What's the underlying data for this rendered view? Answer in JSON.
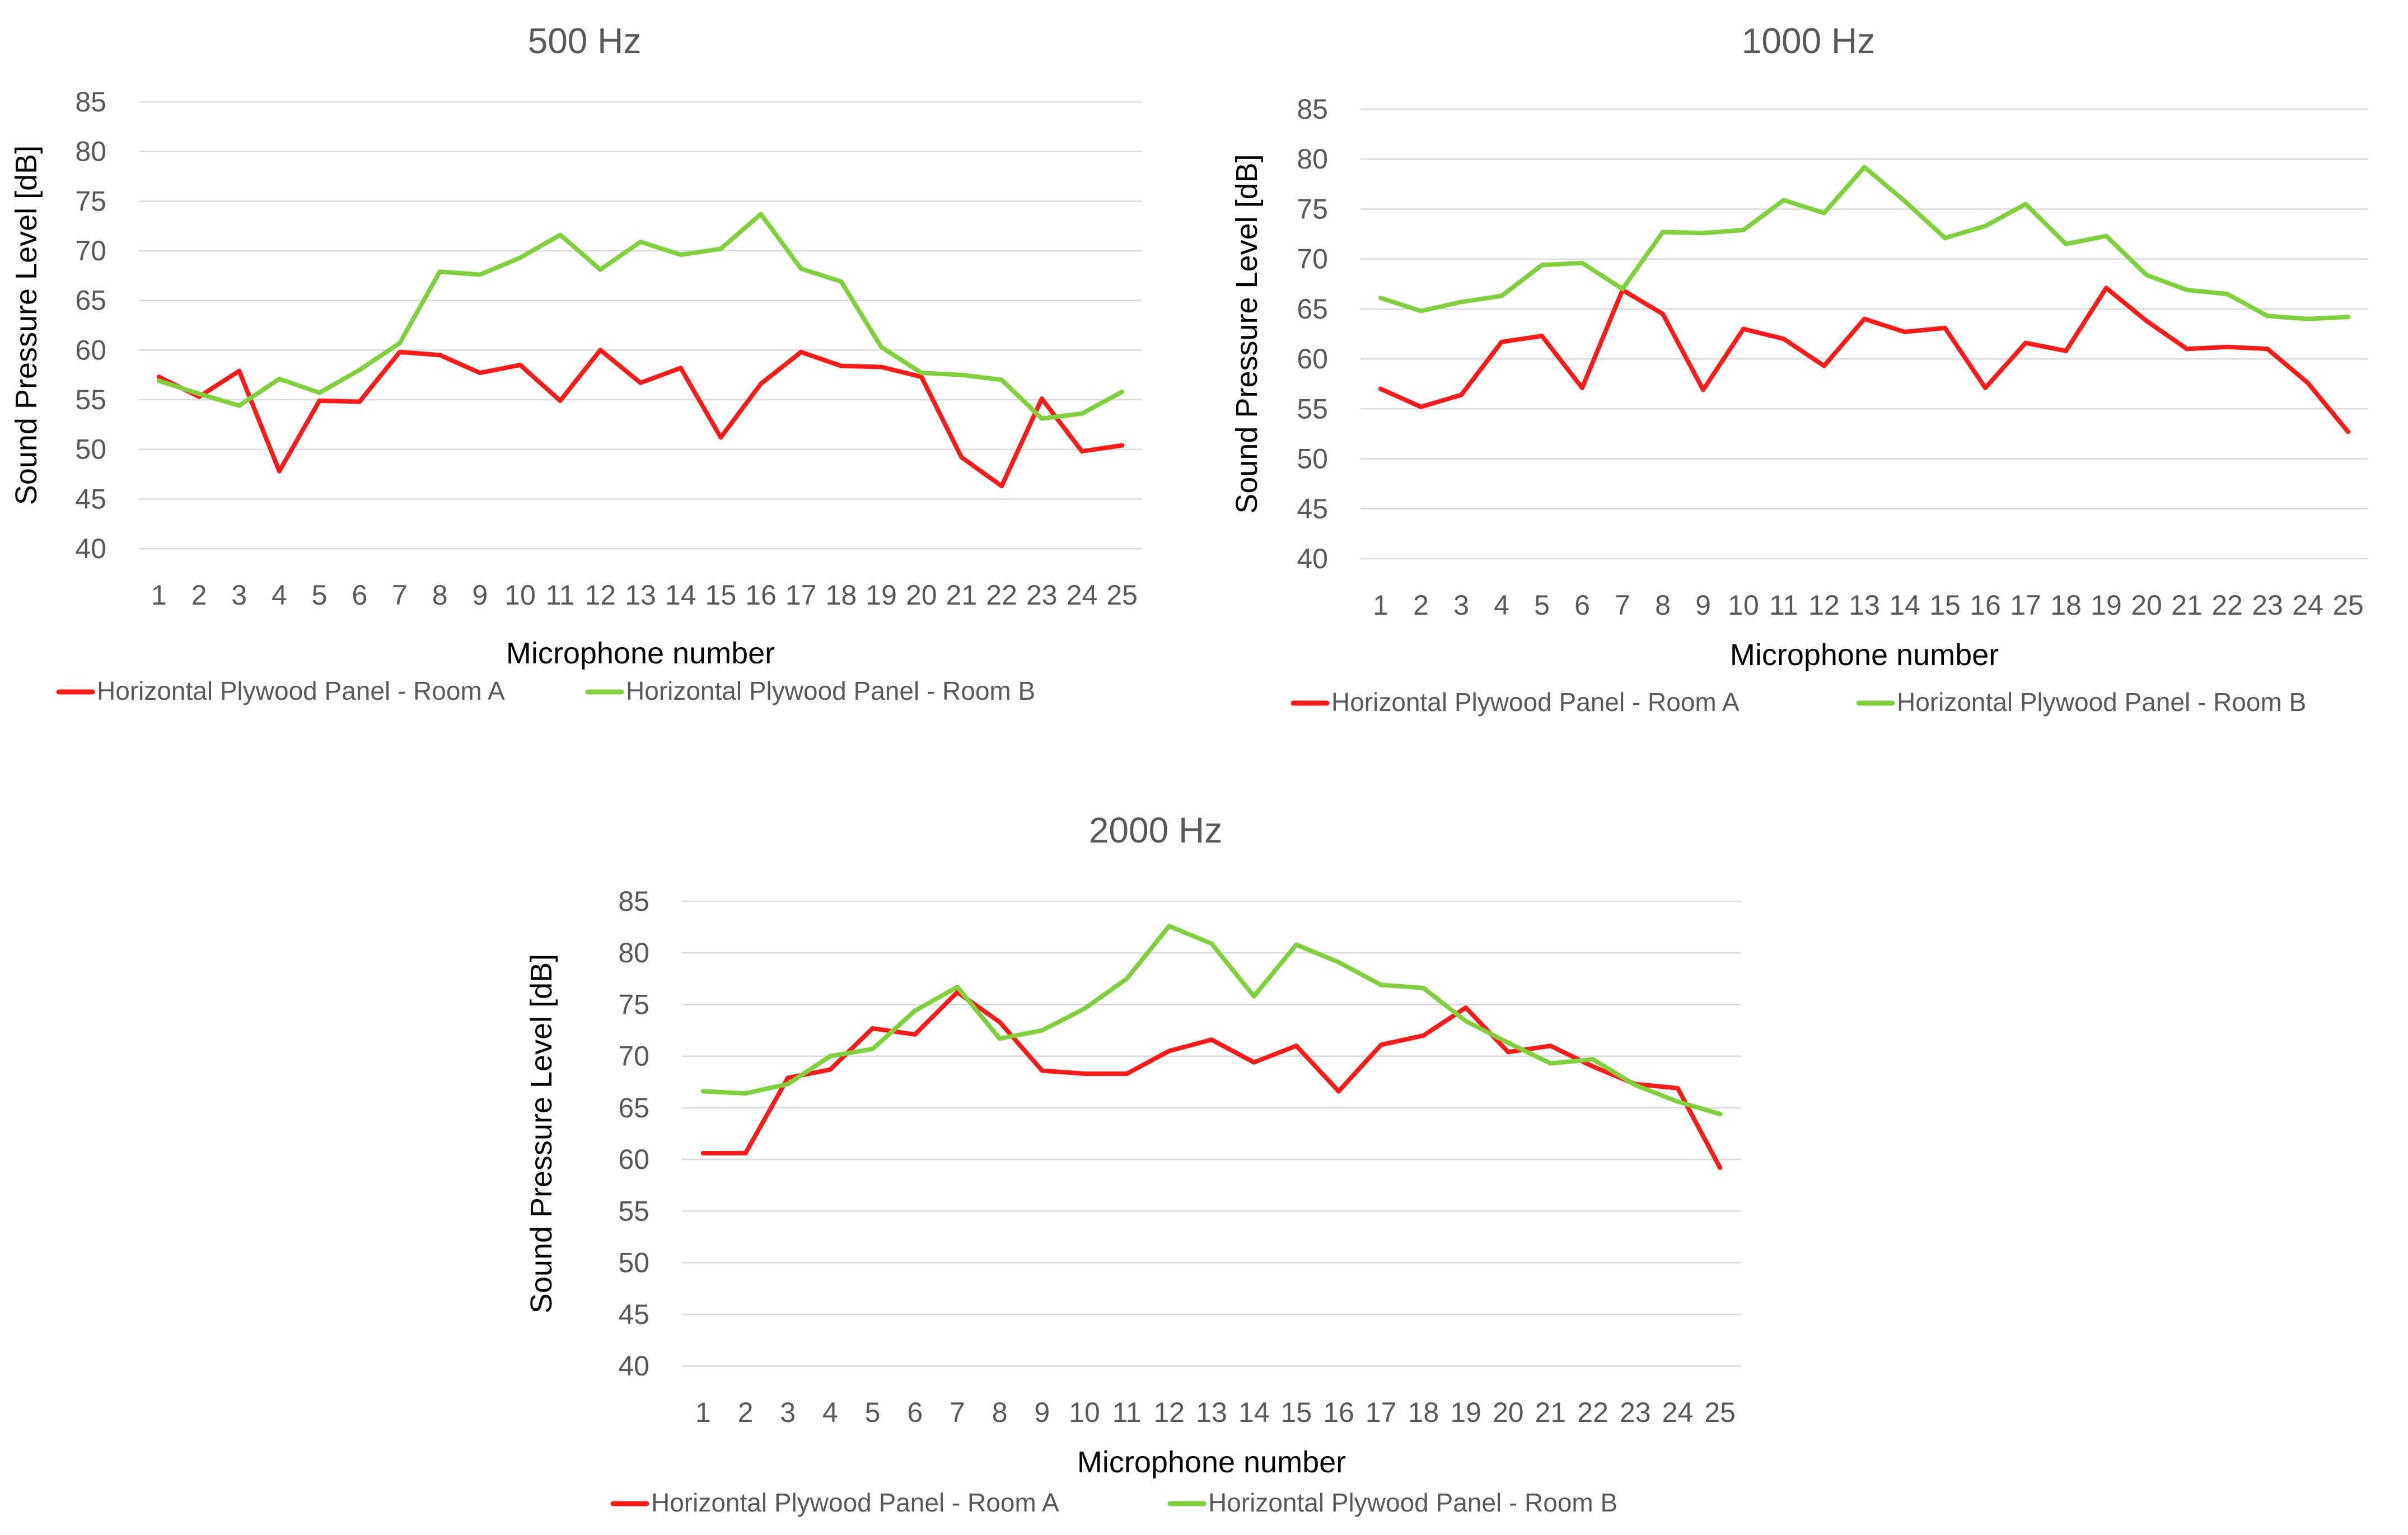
{
  "colors": {
    "room_a": "#ff1a1a",
    "room_b": "#7fd13b"
  },
  "chart_data": [
    {
      "type": "line",
      "title": "500 Hz",
      "xlabel": "Microphone number",
      "ylabel": "Sound Pressure Level [dB]",
      "ylim": [
        40,
        85
      ],
      "yticks": [
        "40",
        "45",
        "50",
        "55",
        "60",
        "65",
        "70",
        "75",
        "80",
        "85"
      ],
      "categories": [
        "1",
        "2",
        "3",
        "4",
        "5",
        "6",
        "7",
        "8",
        "9",
        "10",
        "11",
        "12",
        "13",
        "14",
        "15",
        "16",
        "17",
        "18",
        "19",
        "20",
        "21",
        "22",
        "23",
        "24",
        "25"
      ],
      "legend": "bottom",
      "series": [
        {
          "name": "Horizontal Plywood Panel - Room A",
          "color": "#ff1a1a",
          "values": [
            57.3,
            55.3,
            57.9,
            47.8,
            54.9,
            54.8,
            59.8,
            59.5,
            57.7,
            58.5,
            54.9,
            60.0,
            56.7,
            58.2,
            51.2,
            56.6,
            59.8,
            58.4,
            58.3,
            57.3,
            49.2,
            46.3,
            55.1,
            49.8,
            50.4
          ]
        },
        {
          "name": "Horizontal Plywood Panel - Room B",
          "color": "#7fd13b",
          "values": [
            56.9,
            55.6,
            54.4,
            57.1,
            55.7,
            58.0,
            60.7,
            67.9,
            67.6,
            69.3,
            71.6,
            68.1,
            70.9,
            69.6,
            70.2,
            73.7,
            68.2,
            66.9,
            60.3,
            57.7,
            57.5,
            57.0,
            53.1,
            53.6,
            55.8
          ]
        }
      ]
    },
    {
      "type": "line",
      "title": "1000 Hz",
      "xlabel": "Microphone number",
      "ylabel": "Sound Pressure Level [dB]",
      "ylim": [
        40,
        85
      ],
      "yticks": [
        "40",
        "45",
        "50",
        "55",
        "60",
        "65",
        "70",
        "75",
        "80",
        "85"
      ],
      "categories": [
        "1",
        "2",
        "3",
        "4",
        "5",
        "6",
        "7",
        "8",
        "9",
        "10",
        "11",
        "12",
        "13",
        "14",
        "15",
        "16",
        "17",
        "18",
        "19",
        "20",
        "21",
        "22",
        "23",
        "24",
        "25"
      ],
      "legend": "bottom",
      "series": [
        {
          "name": "Horizontal Plywood Panel - Room A",
          "color": "#ff1a1a",
          "values": [
            57.0,
            55.2,
            56.4,
            61.7,
            62.3,
            57.1,
            66.9,
            64.5,
            56.9,
            63.0,
            62.0,
            59.3,
            64.0,
            62.7,
            63.1,
            57.1,
            61.6,
            60.8,
            67.1,
            63.8,
            61.0,
            61.2,
            61.0,
            57.6,
            52.7
          ]
        },
        {
          "name": "Horizontal Plywood Panel - Room B",
          "color": "#7fd13b",
          "values": [
            66.1,
            64.8,
            65.7,
            66.3,
            69.4,
            69.6,
            67.0,
            72.7,
            72.6,
            72.9,
            75.9,
            74.6,
            79.2,
            75.8,
            72.1,
            73.3,
            75.5,
            71.5,
            72.3,
            68.4,
            66.9,
            66.5,
            64.3,
            64.0,
            64.2
          ]
        }
      ]
    },
    {
      "type": "line",
      "title": "2000 Hz",
      "xlabel": "Microphone number",
      "ylabel": "Sound Pressure Level [dB]",
      "ylim": [
        40,
        85
      ],
      "yticks": [
        "40",
        "45",
        "50",
        "55",
        "60",
        "65",
        "70",
        "75",
        "80",
        "85"
      ],
      "categories": [
        "1",
        "2",
        "3",
        "4",
        "5",
        "6",
        "7",
        "8",
        "9",
        "10",
        "11",
        "12",
        "13",
        "14",
        "15",
        "16",
        "17",
        "18",
        "19",
        "20",
        "21",
        "22",
        "23",
        "24",
        "25"
      ],
      "legend": "bottom",
      "series": [
        {
          "name": "Horizontal Plywood Panel - Room A",
          "color": "#ff1a1a",
          "values": [
            60.6,
            60.6,
            67.9,
            68.7,
            72.7,
            72.1,
            76.2,
            73.3,
            68.6,
            68.3,
            68.3,
            70.5,
            71.6,
            69.4,
            71.0,
            66.6,
            71.1,
            72.0,
            74.7,
            70.4,
            71.0,
            69.0,
            67.3,
            66.9,
            59.2
          ]
        },
        {
          "name": "Horizontal Plywood Panel - Room B",
          "color": "#7fd13b",
          "values": [
            66.6,
            66.4,
            67.3,
            70.0,
            70.7,
            74.4,
            76.7,
            71.7,
            72.5,
            74.6,
            77.5,
            82.6,
            80.9,
            75.8,
            80.8,
            79.1,
            76.9,
            76.6,
            73.4,
            71.3,
            69.3,
            69.7,
            67.2,
            65.6,
            64.4
          ]
        }
      ]
    }
  ]
}
